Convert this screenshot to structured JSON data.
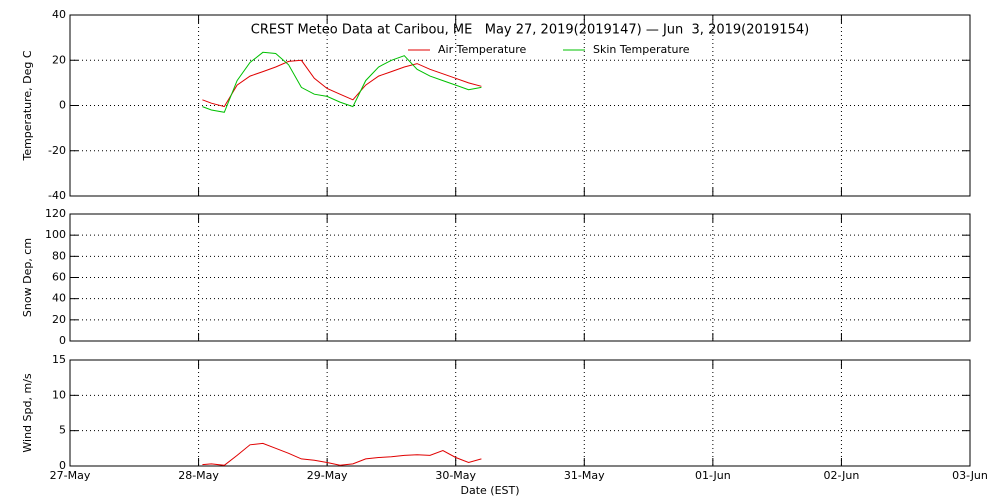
{
  "chart_data": [
    {
      "type": "line",
      "title": "CREST Meteo Data at Caribou, ME   May 27, 2019(2019147) — Jun  3, 2019(2019154)",
      "ylabel": "Temperature, Deg C",
      "ylim": [
        -40,
        40
      ],
      "yticks": [
        -40,
        -20,
        0,
        20,
        40
      ],
      "grid": true,
      "xlim": [
        0,
        7
      ],
      "xticks": [
        0,
        1,
        2,
        3,
        4,
        5,
        6,
        7
      ],
      "x": [
        1.03,
        1.1,
        1.2,
        1.3,
        1.4,
        1.5,
        1.6,
        1.7,
        1.8,
        1.9,
        2.0,
        2.1,
        2.2,
        2.3,
        2.4,
        2.5,
        2.6,
        2.7,
        2.8,
        2.9,
        3.0,
        3.1,
        3.2
      ],
      "series": [
        {
          "name": "Air Temperature",
          "color": "#e00000",
          "values": [
            2.5,
            1,
            -0.5,
            9,
            13,
            15,
            17,
            19.5,
            20,
            12,
            7.5,
            5,
            2.5,
            9,
            13,
            15,
            17,
            18.5,
            16,
            14,
            12,
            10,
            8.5
          ]
        },
        {
          "name": "Skin Temperature",
          "color": "#00c000",
          "values": [
            -0.5,
            -2,
            -3,
            11,
            19,
            23.5,
            23,
            18,
            8,
            5,
            4,
            1.5,
            -0.5,
            11,
            17,
            20,
            22,
            16,
            13,
            11,
            9,
            7,
            8
          ]
        }
      ]
    },
    {
      "type": "line",
      "ylabel": "Snow Dep, cm",
      "ylim": [
        0,
        120
      ],
      "yticks": [
        0,
        20,
        40,
        60,
        80,
        100,
        120
      ],
      "grid": true,
      "xlim": [
        0,
        7
      ],
      "xticks": [
        0,
        1,
        2,
        3,
        4,
        5,
        6,
        7
      ],
      "series": []
    },
    {
      "type": "line",
      "ylabel": "Wind Spd, m/s",
      "xlabel": "Date (EST)",
      "ylim": [
        0,
        15
      ],
      "yticks": [
        0,
        5,
        10,
        15
      ],
      "grid": true,
      "xlim": [
        0,
        7
      ],
      "xticks": [
        {
          "value": 0,
          "label": "27-May"
        },
        {
          "value": 1,
          "label": "28-May"
        },
        {
          "value": 2,
          "label": "29-May"
        },
        {
          "value": 3,
          "label": "30-May"
        },
        {
          "value": 4,
          "label": "31-May"
        },
        {
          "value": 5,
          "label": "01-Jun"
        },
        {
          "value": 6,
          "label": "02-Jun"
        },
        {
          "value": 7,
          "label": "03-Jun"
        }
      ],
      "x": [
        1.03,
        1.1,
        1.2,
        1.3,
        1.4,
        1.5,
        1.6,
        1.7,
        1.8,
        1.9,
        2.0,
        2.1,
        2.2,
        2.3,
        2.4,
        2.5,
        2.6,
        2.7,
        2.8,
        2.9,
        3.0,
        3.1,
        3.2
      ],
      "series": [
        {
          "color": "#e00000",
          "values": [
            0.2,
            0.3,
            0.1,
            1.5,
            3,
            3.2,
            2.5,
            1.8,
            1,
            0.8,
            0.5,
            0.1,
            0.3,
            1,
            1.2,
            1.3,
            1.5,
            1.6,
            1.5,
            2.2,
            1.2,
            0.5,
            1
          ]
        }
      ]
    }
  ]
}
